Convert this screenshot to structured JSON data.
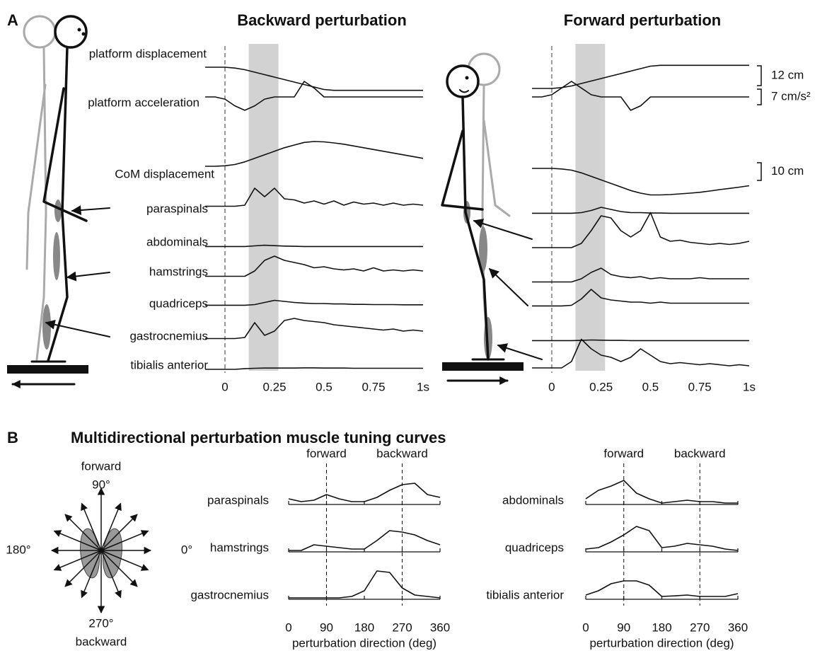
{
  "panel_a": {
    "label": "A",
    "trace_labels": [
      "platform displacement",
      "platform acceleration",
      "CoM displacement",
      "paraspinals",
      "abdominals",
      "hamstrings",
      "quadriceps",
      "gastrocnemius",
      "tibialis anterior"
    ],
    "scale_bars": [
      {
        "value": 12,
        "label": "12 cm"
      },
      {
        "value": 7,
        "label": "7 cm/s²"
      },
      {
        "value": 10,
        "label": "10 cm"
      }
    ],
    "panels": [
      {
        "title": "Backward perturbation",
        "xlim": [
          -0.1,
          1
        ],
        "xticks": [
          0,
          0.25,
          0.5,
          0.75,
          {
            "value": 1,
            "label": "1s"
          }
        ],
        "shaded": [
          0.12,
          0.27
        ],
        "x": [
          -0.1,
          -0.05,
          0,
          0.05,
          0.1,
          0.15,
          0.2,
          0.25,
          0.3,
          0.35,
          0.4,
          0.45,
          0.5,
          0.55,
          0.6,
          0.65,
          0.7,
          0.75,
          0.8,
          0.85,
          0.9,
          0.95,
          1.0
        ],
        "traces": [
          [
            0,
            0,
            0,
            -0.5,
            -1.5,
            -3,
            -4.5,
            -6,
            -7.5,
            -9,
            -10.5,
            -12,
            -13.5,
            -14,
            -14,
            -14,
            -14,
            -14,
            -14,
            -14,
            -14,
            -14,
            -14
          ],
          [
            0,
            0,
            -1,
            -4,
            -6,
            -4,
            -1,
            0,
            0,
            0,
            7,
            4,
            0,
            0,
            0,
            0,
            0,
            0,
            0,
            0,
            0,
            0,
            0
          ],
          [
            0,
            0,
            0.3,
            1,
            2.5,
            4.5,
            6.5,
            8.5,
            10.5,
            12,
            13.5,
            14,
            13.8,
            13.2,
            12.5,
            11.5,
            10.5,
            9.5,
            8.5,
            7.5,
            6.5,
            5.5,
            4.5
          ],
          [
            0.05,
            0.05,
            0.05,
            0.05,
            0.1,
            0.9,
            0.5,
            0.9,
            0.4,
            0.35,
            0.2,
            0.3,
            0.15,
            0.3,
            0.1,
            0.25,
            0.15,
            0.2,
            0.1,
            0.2,
            0.1,
            0.15,
            0.1
          ],
          [
            0.02,
            0.02,
            0.02,
            0.02,
            0.02,
            0.05,
            0.08,
            0.06,
            0.04,
            0.03,
            0.02,
            0.02,
            0.02,
            0.02,
            0.02,
            0.02,
            0.02,
            0.02,
            0.02,
            0.02,
            0.02,
            0.02,
            0.02
          ],
          [
            0.05,
            0.05,
            0.05,
            0.05,
            0.05,
            0.3,
            0.8,
            1.0,
            0.8,
            0.7,
            0.6,
            0.45,
            0.5,
            0.4,
            0.35,
            0.4,
            0.3,
            0.45,
            0.3,
            0.35,
            0.3,
            0.35,
            0.3
          ],
          [
            0.02,
            0.02,
            0.02,
            0.02,
            0.02,
            0.05,
            0.15,
            0.25,
            0.2,
            0.15,
            0.12,
            0.1,
            0.1,
            0.08,
            0.08,
            0.06,
            0.06,
            0.05,
            0.05,
            0.05,
            0.04,
            0.04,
            0.04
          ],
          [
            0.05,
            0.05,
            0.05,
            0.05,
            0.1,
            0.8,
            0.2,
            0.4,
            0.9,
            1.0,
            0.9,
            0.85,
            0.8,
            0.7,
            0.65,
            0.6,
            0.55,
            0.5,
            0.45,
            0.5,
            0.4,
            0.45,
            0.4
          ],
          [
            0,
            0,
            0,
            0,
            0.03,
            0.05,
            0.06,
            0.06,
            0.06,
            0.06,
            0.07,
            0.07,
            0.06,
            0.06,
            0.06,
            0.05,
            0.05,
            0.05,
            0.05,
            0.05,
            0.05,
            0.05,
            0.05
          ]
        ]
      },
      {
        "title": "Forward perturbation",
        "xlim": [
          -0.1,
          1
        ],
        "xticks": [
          0,
          0.25,
          0.5,
          0.75,
          {
            "value": 1,
            "label": "1s"
          }
        ],
        "shaded": [
          0.12,
          0.27
        ],
        "x": [
          -0.1,
          -0.05,
          0,
          0.05,
          0.1,
          0.15,
          0.2,
          0.25,
          0.3,
          0.35,
          0.4,
          0.45,
          0.5,
          0.55,
          0.6,
          0.65,
          0.7,
          0.75,
          0.8,
          0.85,
          0.9,
          0.95,
          1.0
        ],
        "traces": [
          [
            0,
            0,
            0,
            0.5,
            1.5,
            3,
            4.5,
            6,
            7.5,
            9,
            10.5,
            12,
            13.5,
            14,
            14,
            14,
            14,
            14,
            14,
            14,
            14,
            14,
            14
          ],
          [
            0,
            0,
            1,
            4,
            7,
            4,
            1,
            0,
            0,
            0,
            -6,
            -4,
            0,
            0,
            0,
            0,
            0,
            0,
            0,
            0,
            0,
            0,
            0
          ],
          [
            0,
            0,
            0,
            -0.3,
            -1,
            -2.5,
            -4.5,
            -6.5,
            -8.5,
            -10.5,
            -12.5,
            -14,
            -15,
            -15,
            -14.8,
            -14.4,
            -14,
            -13.5,
            -12.8,
            -12,
            -11.3,
            -10.6,
            -9.8
          ],
          [
            0.02,
            0.02,
            0.02,
            0.02,
            0.02,
            0.05,
            0.15,
            0.3,
            0.2,
            0.1,
            0.05,
            0.05,
            0.03,
            0.03,
            0.02,
            0.02,
            0.02,
            0.02,
            0.02,
            0.02,
            0.02,
            0.02,
            0.02
          ],
          [
            0,
            0,
            0,
            0,
            0,
            0.2,
            0.8,
            1.5,
            1.4,
            0.8,
            0.5,
            0.8,
            1.65,
            0.5,
            0.3,
            0.35,
            0.25,
            0.2,
            0.15,
            0.2,
            0.15,
            0.2,
            0.3
          ],
          [
            0.05,
            0.05,
            0.05,
            0.05,
            0.05,
            0.2,
            0.5,
            0.7,
            0.4,
            0.3,
            0.25,
            0.3,
            0.2,
            0.25,
            0.2,
            0.2,
            0.2,
            0.25,
            0.2,
            0.2,
            0.2,
            0.2,
            0.2
          ],
          [
            0.02,
            0.02,
            0.02,
            0.02,
            0.05,
            0.35,
            0.8,
            0.4,
            0.3,
            0.25,
            0.2,
            0.2,
            0.15,
            0.2,
            0.15,
            0.15,
            0.15,
            0.15,
            0.15,
            0.15,
            0.15,
            0.15,
            0.15
          ],
          [
            0.02,
            0.02,
            0.02,
            0.02,
            0.02,
            0.03,
            0.05,
            0.04,
            0.03,
            0.03,
            0.02,
            0.02,
            0.02,
            0.02,
            0.02,
            0.02,
            0.02,
            0.02,
            0.02,
            0.02,
            0.02,
            0.02,
            0.02
          ],
          [
            0,
            0,
            0,
            0,
            0.3,
            1.35,
            0.9,
            0.6,
            0.5,
            0.3,
            0.5,
            0.9,
            0.6,
            0.3,
            0.2,
            0.25,
            0.2,
            0.15,
            0.2,
            0.15,
            0.1,
            0.15,
            0.1
          ]
        ]
      }
    ]
  },
  "panel_b": {
    "label": "B",
    "title": "Multidirectional perturbation muscle tuning curves",
    "compass": {
      "top": "forward",
      "north": "90°",
      "west": "180°",
      "east": "0°",
      "south": "270°",
      "bottom": "backward"
    },
    "plots": [
      {
        "reference_lines": [
          {
            "value": 90,
            "label": "forward"
          },
          {
            "value": 270,
            "label": "backward"
          }
        ],
        "muscles": [
          "paraspinals",
          "hamstrings",
          "gastrocnemius"
        ],
        "x": [
          0,
          30,
          60,
          90,
          120,
          150,
          180,
          210,
          240,
          270,
          300,
          330,
          360
        ],
        "values": [
          [
            0.2,
            0.1,
            0.15,
            0.35,
            0.2,
            0.1,
            0.1,
            0.25,
            0.5,
            0.7,
            0.75,
            0.35,
            0.25
          ],
          [
            0.05,
            0.05,
            0.25,
            0.2,
            0.15,
            0.1,
            0.1,
            0.4,
            0.75,
            0.7,
            0.6,
            0.4,
            0.25
          ],
          [
            0.05,
            0.05,
            0.05,
            0.05,
            0.05,
            0.1,
            0.3,
            1.0,
            0.95,
            0.4,
            0.15,
            0.1,
            0.05
          ]
        ],
        "xlim": [
          0,
          360
        ],
        "xticks": [
          0,
          90,
          180,
          270,
          360
        ],
        "xlabel": "perturbation direction (deg)"
      },
      {
        "reference_lines": [
          {
            "value": 90,
            "label": "forward"
          },
          {
            "value": 270,
            "label": "backward"
          }
        ],
        "muscles": [
          "abdominals",
          "quadriceps",
          "tibialis anterior"
        ],
        "x": [
          0,
          30,
          60,
          90,
          120,
          150,
          180,
          210,
          240,
          270,
          300,
          330,
          360
        ],
        "values": [
          [
            0.2,
            0.5,
            0.65,
            0.85,
            0.4,
            0.2,
            0.05,
            0.1,
            0.15,
            0.1,
            0.1,
            0.05,
            0.05
          ],
          [
            0.1,
            0.15,
            0.35,
            0.6,
            0.9,
            0.75,
            0.15,
            0.2,
            0.3,
            0.25,
            0.2,
            0.1,
            0.05
          ],
          [
            0.15,
            0.3,
            0.55,
            0.65,
            0.65,
            0.5,
            0.1,
            0.12,
            0.15,
            0.1,
            0.1,
            0.1,
            0.2
          ]
        ],
        "xlim": [
          0,
          360
        ],
        "xticks": [
          0,
          90,
          180,
          270,
          360
        ],
        "xlabel": "perturbation direction (deg)"
      }
    ]
  }
}
